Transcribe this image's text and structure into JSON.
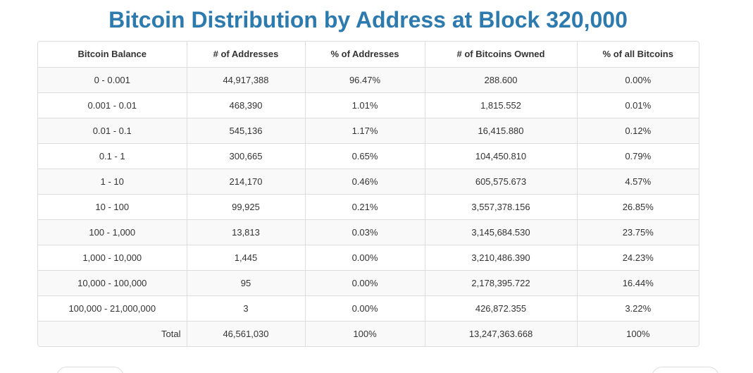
{
  "title": "Bitcoin Distribution by Address at Block 320,000",
  "table": {
    "headers": [
      "Bitcoin Balance",
      "# of Addresses",
      "% of Addresses",
      "# of Bitcoins Owned",
      "% of all Bitcoins"
    ],
    "rows": [
      [
        "0 - 0.001",
        "44,917,388",
        "96.47%",
        "288.600",
        "0.00%"
      ],
      [
        "0.001 - 0.01",
        "468,390",
        "1.01%",
        "1,815.552",
        "0.01%"
      ],
      [
        "0.01 - 0.1",
        "545,136",
        "1.17%",
        "16,415.880",
        "0.12%"
      ],
      [
        "0.1 - 1",
        "300,665",
        "0.65%",
        "104,450.810",
        "0.79%"
      ],
      [
        "1 - 10",
        "214,170",
        "0.46%",
        "605,575.673",
        "4.57%"
      ],
      [
        "10 - 100",
        "99,925",
        "0.21%",
        "3,557,378.156",
        "26.85%"
      ],
      [
        "100 - 1,000",
        "13,813",
        "0.03%",
        "3,145,684.530",
        "23.75%"
      ],
      [
        "1,000 - 10,000",
        "1,445",
        "0.00%",
        "3,210,486.390",
        "24.23%"
      ],
      [
        "10,000 - 100,000",
        "95",
        "0.00%",
        "2,178,395.722",
        "16.44%"
      ],
      [
        "100,000 - 21,000,000",
        "3",
        "0.00%",
        "426,872.355",
        "3.22%"
      ]
    ],
    "total": [
      "Total",
      "46,561,030",
      "100%",
      "13,247,363.668",
      "100%"
    ]
  },
  "colors": {
    "title": "#2d7aae",
    "border": "#dddddd",
    "stripe": "#f9f9f9"
  }
}
